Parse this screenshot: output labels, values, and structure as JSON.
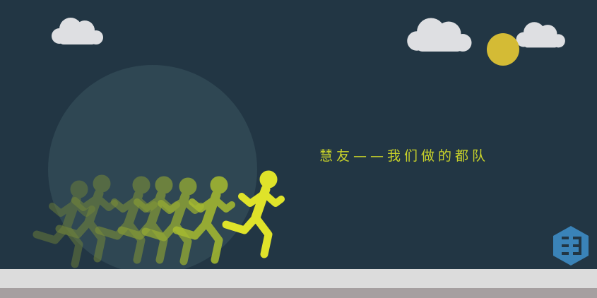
{
  "banner": {
    "tagline": "慧友——我们做的都队"
  },
  "colors": {
    "background": "#223644",
    "moon_glow": "#2f4753",
    "sun": "#d4bb35",
    "cloud": "#dedfe2",
    "runner_front": "#dfe32a",
    "runner_back": "#7b8e3a",
    "ground_top": "#dcdcdc",
    "ground_bottom": "#a59fa0",
    "logo": "#3a83b8"
  },
  "icons": {
    "logo": "brand-logo-icon",
    "sun": "sun-icon",
    "clouds": "cloud-icon"
  }
}
